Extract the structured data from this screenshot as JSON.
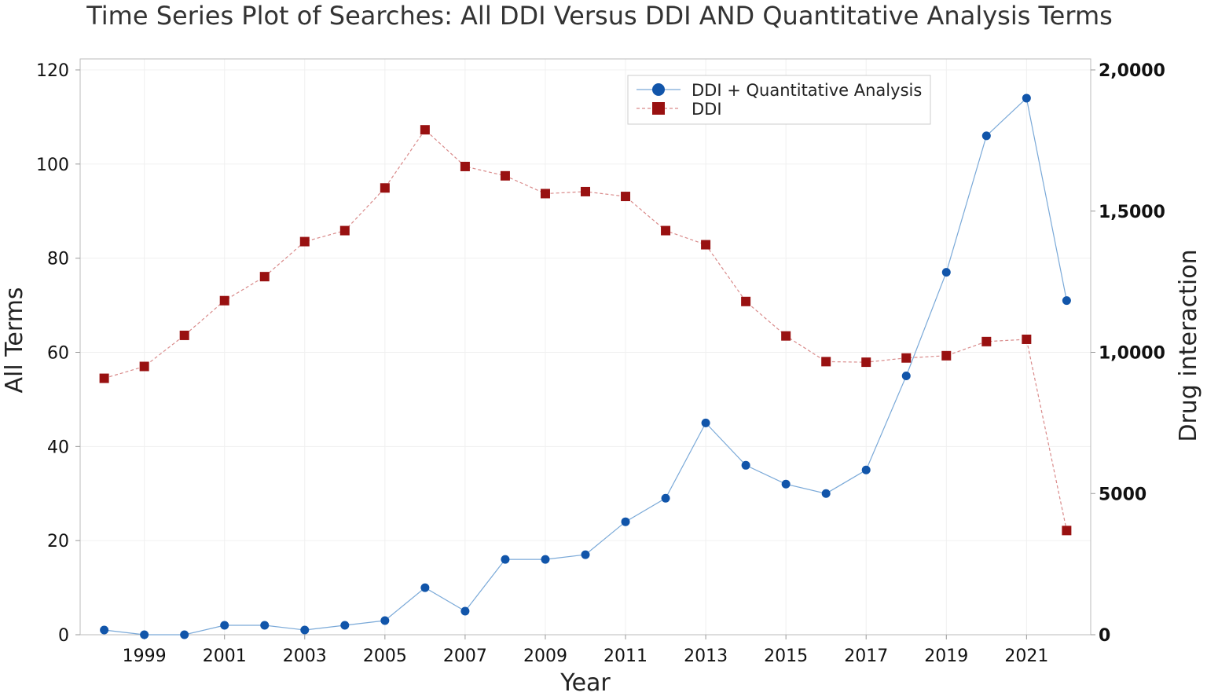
{
  "chart_data": {
    "type": "line",
    "title": "Time Series Plot of Searches: All DDI Versus DDI AND Quantitative Analysis Terms",
    "xlabel": "Year",
    "ylabel": "All Terms",
    "ylabel_right": "Drug interaction",
    "x": [
      1998,
      1999,
      2000,
      2001,
      2002,
      2003,
      2004,
      2005,
      2006,
      2007,
      2008,
      2009,
      2010,
      2011,
      2012,
      2013,
      2014,
      2015,
      2016,
      2017,
      2018,
      2019,
      2020,
      2021,
      2022
    ],
    "x_ticks": [
      "1999",
      "2001",
      "2003",
      "2005",
      "2007",
      "2009",
      "2011",
      "2013",
      "2015",
      "2017",
      "2019",
      "2021"
    ],
    "xlim": [
      1997.4,
      2022.6
    ],
    "ylim": [
      0,
      120
    ],
    "y_ticks": [
      "0",
      "20",
      "40",
      "60",
      "80",
      "100",
      "120"
    ],
    "ylim_right": [
      0,
      20000
    ],
    "y_ticks_right": [
      "0",
      "5000",
      "1,0000",
      "1,5000",
      "2,0000"
    ],
    "grid": true,
    "legend_position": "top-right",
    "series": [
      {
        "name": "DDI + Quantitative Analysis",
        "axis": "left",
        "color": "#1155aa",
        "line_color": "#7aa9d8",
        "marker": "circle",
        "values": [
          1,
          0,
          0,
          2,
          2,
          1,
          2,
          3,
          10,
          5,
          16,
          16,
          17,
          24,
          29,
          45,
          36,
          32,
          30,
          35,
          55,
          77,
          106,
          114,
          71
        ]
      },
      {
        "name": "DDI",
        "axis": "right",
        "color": "#991111",
        "line_color": "#d98a8a",
        "marker": "square",
        "values": [
          9080,
          9500,
          10600,
          11830,
          12680,
          13920,
          14310,
          15820,
          17880,
          16580,
          16250,
          15620,
          15690,
          15520,
          14310,
          13810,
          11800,
          10580,
          9670,
          9650,
          9800,
          9880,
          10380,
          10460,
          3690
        ]
      }
    ]
  }
}
